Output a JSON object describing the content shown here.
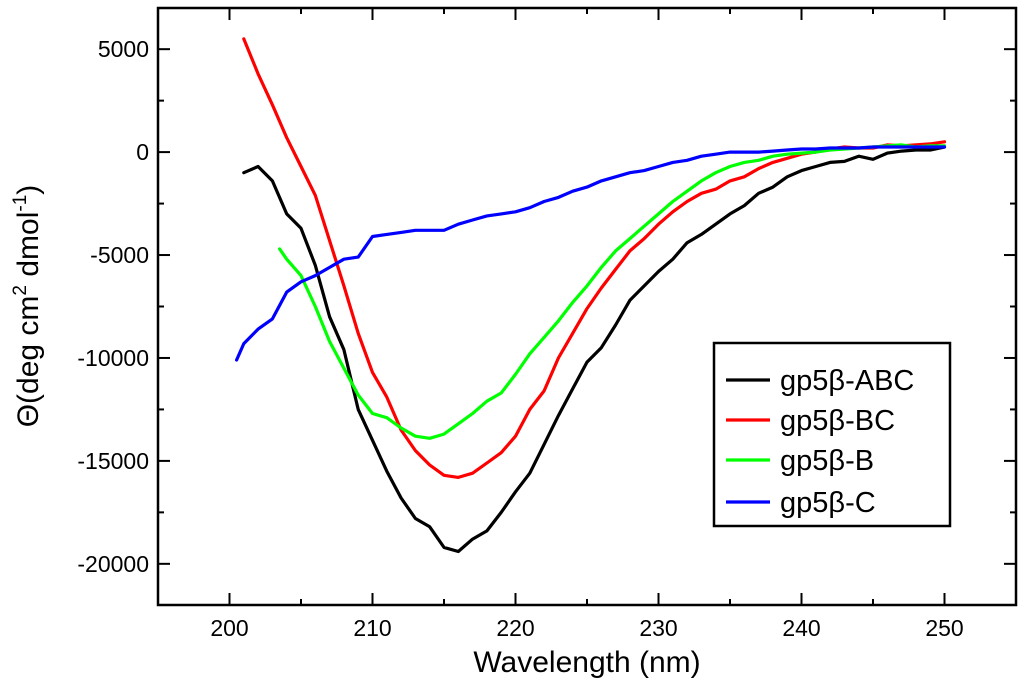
{
  "chart_data": {
    "type": "line",
    "title": "",
    "xlabel": "Wavelength (nm)",
    "ylabel": {
      "prefix": "Θ(deg cm",
      "sup1": "2",
      "middle": " dmol",
      "sup2": "-1",
      "suffix": ")"
    },
    "xlim": [
      195,
      255
    ],
    "ylim": [
      -22000,
      7000
    ],
    "x_ticks": [
      200,
      210,
      220,
      230,
      240,
      250
    ],
    "x_tick_labels": [
      "200",
      "210",
      "220",
      "230",
      "240",
      "250"
    ],
    "y_ticks": [
      5000,
      0,
      -5000,
      -10000,
      -15000,
      -20000
    ],
    "y_tick_labels": [
      "5000",
      "0",
      "-5000",
      "-10000",
      "-15000",
      "-20000"
    ],
    "grid": false,
    "legend_position": "bottom-right",
    "series": [
      {
        "name": "gp5β-ABC",
        "color": "#000000",
        "x": [
          201,
          202,
          203,
          204,
          205,
          206,
          207,
          208,
          209,
          210,
          211,
          212,
          213,
          214,
          215,
          216,
          217,
          218,
          219,
          220,
          221,
          222,
          223,
          224,
          225,
          226,
          227,
          228,
          229,
          230,
          231,
          232,
          233,
          234,
          235,
          236,
          237,
          238,
          239,
          240,
          241,
          242,
          243,
          244,
          245,
          246,
          247,
          248,
          249,
          250
        ],
        "y": [
          -1000,
          -700,
          -1400,
          -3000,
          -3700,
          -5500,
          -8000,
          -9600,
          -12500,
          -14000,
          -15500,
          -16800,
          -17800,
          -18200,
          -19200,
          -19400,
          -18800,
          -18400,
          -17500,
          -16500,
          -15600,
          -14200,
          -12800,
          -11500,
          -10200,
          -9500,
          -8400,
          -7200,
          -6500,
          -5800,
          -5200,
          -4400,
          -4000,
          -3500,
          -3000,
          -2600,
          -2000,
          -1700,
          -1200,
          -900,
          -700,
          -500,
          -450,
          -200,
          -350,
          -50,
          50,
          100,
          100,
          250
        ]
      },
      {
        "name": "gp5β-BC",
        "color": "#ff0000",
        "x": [
          201,
          202,
          203,
          204,
          205,
          206,
          207,
          208,
          209,
          210,
          211,
          212,
          213,
          214,
          215,
          216,
          217,
          218,
          219,
          220,
          221,
          222,
          223,
          224,
          225,
          226,
          227,
          228,
          229,
          230,
          231,
          232,
          233,
          234,
          235,
          236,
          237,
          238,
          239,
          240,
          241,
          242,
          243,
          244,
          245,
          246,
          247,
          248,
          249,
          250
        ],
        "y": [
          5500,
          3800,
          2300,
          700,
          -700,
          -2100,
          -4300,
          -6500,
          -8800,
          -10700,
          -11900,
          -13500,
          -14500,
          -15200,
          -15700,
          -15800,
          -15600,
          -15100,
          -14600,
          -13800,
          -12500,
          -11600,
          -10000,
          -8800,
          -7600,
          -6600,
          -5700,
          -4800,
          -4200,
          -3500,
          -2900,
          -2400,
          -2000,
          -1800,
          -1400,
          -1200,
          -800,
          -500,
          -300,
          -100,
          0,
          150,
          250,
          200,
          200,
          350,
          300,
          350,
          400,
          500
        ]
      },
      {
        "name": "gp5β-B",
        "color": "#00ff00",
        "x": [
          203.5,
          204,
          205,
          206,
          207,
          208,
          209,
          210,
          211,
          212,
          213,
          214,
          215,
          216,
          217,
          218,
          219,
          220,
          221,
          222,
          223,
          224,
          225,
          226,
          227,
          228,
          229,
          230,
          231,
          232,
          233,
          234,
          235,
          236,
          237,
          238,
          239,
          240,
          241,
          242,
          243,
          244,
          245,
          246,
          247,
          248,
          249,
          250
        ],
        "y": [
          -4700,
          -5200,
          -6000,
          -7500,
          -9200,
          -10500,
          -11800,
          -12700,
          -12900,
          -13400,
          -13800,
          -13900,
          -13700,
          -13200,
          -12700,
          -12100,
          -11700,
          -10800,
          -9800,
          -9000,
          -8200,
          -7300,
          -6500,
          -5600,
          -4800,
          -4200,
          -3600,
          -3000,
          -2400,
          -1900,
          -1400,
          -1000,
          -700,
          -500,
          -400,
          -200,
          -100,
          -50,
          0,
          100,
          150,
          200,
          250,
          300,
          350,
          250,
          300,
          300
        ]
      },
      {
        "name": "gp5β-C",
        "color": "#0000ff",
        "x": [
          200.5,
          201,
          202,
          203,
          204,
          205,
          206,
          207,
          208,
          209,
          210,
          211,
          212,
          213,
          214,
          215,
          216,
          217,
          218,
          219,
          220,
          221,
          222,
          223,
          224,
          225,
          226,
          227,
          228,
          229,
          230,
          231,
          232,
          233,
          234,
          235,
          236,
          237,
          238,
          239,
          240,
          241,
          242,
          243,
          244,
          245,
          246,
          247,
          248,
          249,
          250
        ],
        "y": [
          -10100,
          -9300,
          -8600,
          -8100,
          -6800,
          -6300,
          -6000,
          -5600,
          -5200,
          -5100,
          -4100,
          -4000,
          -3900,
          -3800,
          -3800,
          -3800,
          -3500,
          -3300,
          -3100,
          -3000,
          -2900,
          -2700,
          -2400,
          -2200,
          -1900,
          -1700,
          -1400,
          -1200,
          -1000,
          -900,
          -700,
          -500,
          -400,
          -200,
          -100,
          0,
          0,
          0,
          50,
          100,
          150,
          150,
          200,
          200,
          200,
          250,
          250,
          250,
          250,
          250,
          250
        ]
      }
    ]
  }
}
